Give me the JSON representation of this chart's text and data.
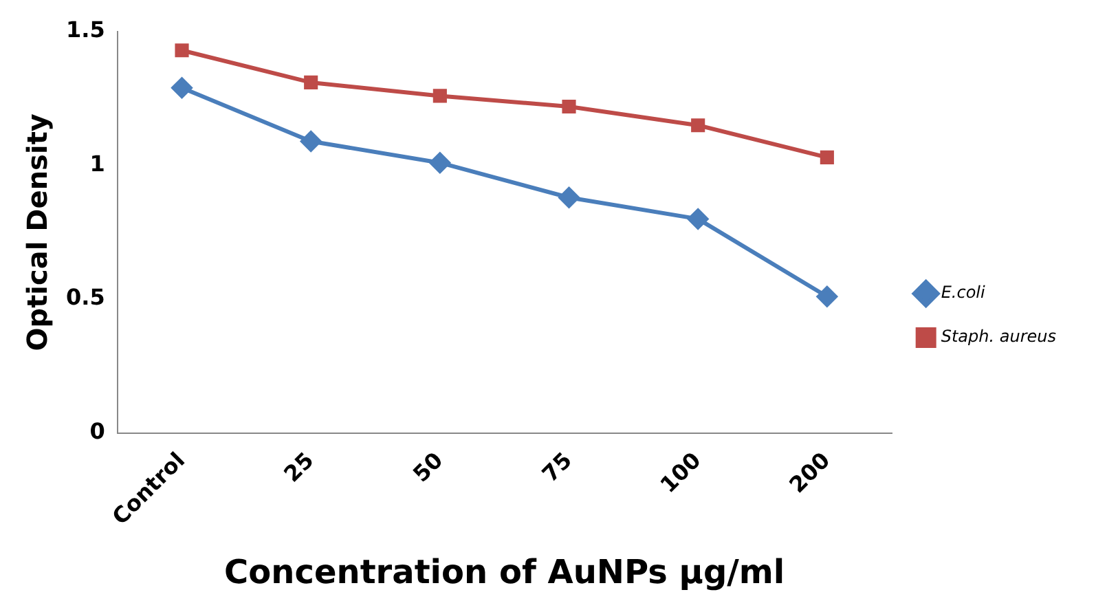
{
  "chart_data": {
    "type": "line",
    "xlabel": "Concentration of AuNPs µg/ml",
    "ylabel": "Optical Density",
    "categories": [
      "Control",
      "25",
      "50",
      "75",
      "100",
      "200"
    ],
    "series": [
      {
        "name": "E.coli",
        "color": "#4a7ebb",
        "marker": "diamond",
        "values": [
          1.29,
          1.09,
          1.01,
          0.88,
          0.8,
          0.51
        ]
      },
      {
        "name": "Staph. aureus",
        "color": "#be4b48",
        "marker": "square",
        "values": [
          1.43,
          1.31,
          1.26,
          1.22,
          1.15,
          1.03
        ]
      }
    ],
    "ylim": [
      0,
      1.5
    ],
    "yticks": [
      0,
      0.5,
      1,
      1.5
    ],
    "grid": false,
    "legend": "right"
  }
}
